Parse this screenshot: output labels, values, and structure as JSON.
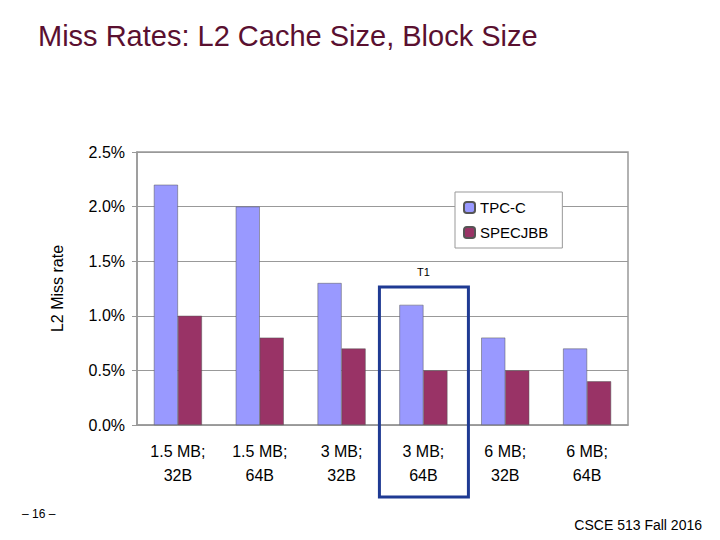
{
  "chart_data": {
    "type": "bar",
    "title": "Miss Rates: L2 Cache Size, Block Size",
    "y_label": "L2 Miss rate",
    "categories": [
      "1.5 MB; 32B",
      "1.5 MB; 64B",
      "3 MB; 32B",
      "3 MB; 64B",
      "6 MB; 32B",
      "6 MB; 64B"
    ],
    "series": [
      {
        "name": "TPC-C",
        "color": "#9999ff",
        "values": [
          2.2,
          2.0,
          1.3,
          1.1,
          0.8,
          0.7
        ]
      },
      {
        "name": "SPECJBB",
        "color": "#993366",
        "values": [
          1.0,
          0.8,
          0.7,
          0.5,
          0.5,
          0.4
        ]
      }
    ],
    "ylim": [
      0,
      2.5
    ],
    "yticks": [
      {
        "value": 0,
        "label": "0.0%"
      },
      {
        "value": 0.5,
        "label": "0.5%"
      },
      {
        "value": 1,
        "label": "1.0%"
      },
      {
        "value": 1.5,
        "label": "1.5%"
      },
      {
        "value": 2,
        "label": "2.0%"
      },
      {
        "value": 2.5,
        "label": "2.5%"
      }
    ],
    "grid": true,
    "legend": "upper right",
    "annotations": [
      {
        "text": "T1",
        "category": "3 MB; 64B"
      }
    ],
    "footer": [
      "– 16 –",
      "CSCE 513 Fall 2016"
    ]
  }
}
